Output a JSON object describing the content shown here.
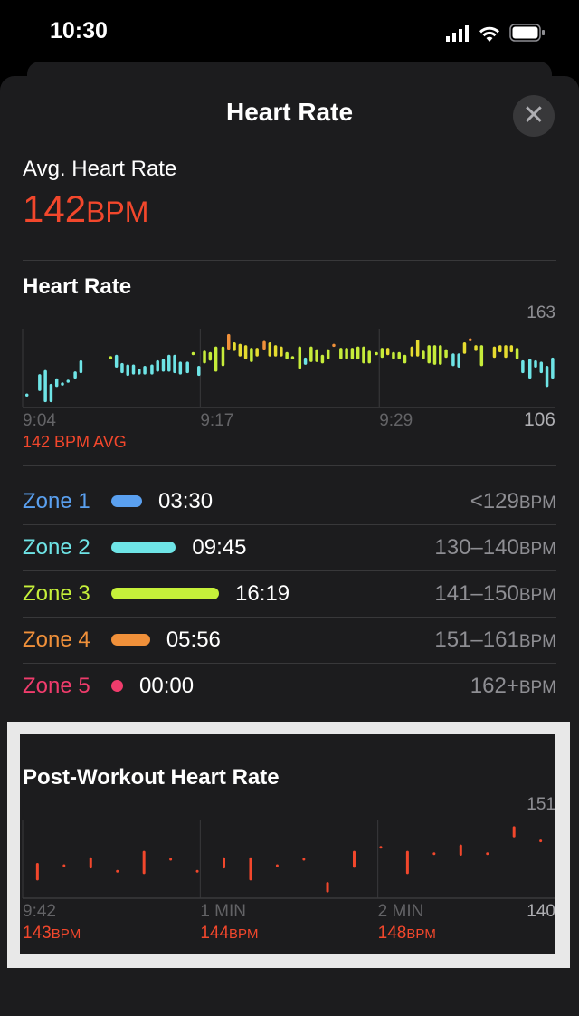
{
  "status": {
    "time": "10:30"
  },
  "header": {
    "title": "Heart Rate",
    "close_icon": "close-icon"
  },
  "avg": {
    "label": "Avg. Heart Rate",
    "value": "142",
    "unit": "BPM"
  },
  "colors": {
    "accent": "#f2472c",
    "zone1": "#5aa0f0",
    "zone2": "#6ee4e6",
    "zone3": "#c6f03a",
    "zone4": "#f0903a",
    "zone5": "#f03c6c"
  },
  "chart_data": [
    {
      "type": "bar",
      "title": "Heart Rate",
      "ylim": [
        106,
        163
      ],
      "y_max_label": "163",
      "y_min_label": "106",
      "xlim": [
        0,
        37.5
      ],
      "x_ticks": [
        {
          "label": "9:04",
          "min": 0
        },
        {
          "label": "9:17",
          "min": 12.5
        },
        {
          "label": "9:29",
          "min": 25.1
        }
      ],
      "summary": "142 BPM AVG",
      "bars": [
        [
          0.3,
          115,
          115
        ],
        [
          1.2,
          119,
          129
        ],
        [
          1.6,
          111,
          132
        ],
        [
          2.0,
          111,
          122
        ],
        [
          2.4,
          122,
          126
        ],
        [
          2.8,
          123,
          123
        ],
        [
          3.2,
          125,
          125
        ],
        [
          3.7,
          128,
          131
        ],
        [
          4.1,
          132,
          139
        ],
        [
          6.2,
          142,
          142
        ],
        [
          6.6,
          136,
          143
        ],
        [
          7.0,
          132,
          137
        ],
        [
          7.4,
          130,
          136
        ],
        [
          7.8,
          131,
          136
        ],
        [
          8.2,
          131,
          133
        ],
        [
          8.6,
          131,
          135
        ],
        [
          9.1,
          131,
          136
        ],
        [
          9.5,
          133,
          139
        ],
        [
          9.9,
          133,
          140
        ],
        [
          10.3,
          133,
          143
        ],
        [
          10.7,
          132,
          143
        ],
        [
          11.1,
          131,
          138
        ],
        [
          11.6,
          132,
          138
        ],
        [
          12.0,
          145,
          145
        ],
        [
          12.4,
          130,
          135
        ],
        [
          12.8,
          139,
          146
        ],
        [
          13.2,
          141,
          145
        ],
        [
          13.6,
          133,
          149
        ],
        [
          14.1,
          137,
          149
        ],
        [
          14.5,
          149,
          158
        ],
        [
          14.9,
          148,
          152
        ],
        [
          15.3,
          144,
          151
        ],
        [
          15.7,
          142,
          150
        ],
        [
          16.1,
          140,
          148
        ],
        [
          16.5,
          144,
          148
        ],
        [
          17.0,
          149,
          153
        ],
        [
          17.4,
          144,
          152
        ],
        [
          17.8,
          144,
          150
        ],
        [
          18.2,
          144,
          149
        ],
        [
          18.6,
          142,
          145
        ],
        [
          19.0,
          142,
          142
        ],
        [
          19.5,
          135,
          149
        ],
        [
          19.9,
          138,
          141
        ],
        [
          20.3,
          140,
          149
        ],
        [
          20.7,
          140,
          147
        ],
        [
          21.1,
          139,
          143
        ],
        [
          21.5,
          142,
          147
        ],
        [
          21.9,
          151,
          151
        ],
        [
          22.4,
          142,
          148
        ],
        [
          22.8,
          142,
          148
        ],
        [
          23.2,
          142,
          148
        ],
        [
          23.6,
          142,
          149
        ],
        [
          24.0,
          139,
          149
        ],
        [
          24.4,
          139,
          146
        ],
        [
          24.9,
          145,
          145
        ],
        [
          25.3,
          143,
          148
        ],
        [
          25.7,
          145,
          148
        ],
        [
          26.1,
          142,
          145
        ],
        [
          26.5,
          142,
          145
        ],
        [
          26.9,
          139,
          143
        ],
        [
          27.4,
          144,
          149
        ],
        [
          27.8,
          144,
          154
        ],
        [
          28.2,
          142,
          146
        ],
        [
          28.6,
          139,
          150
        ],
        [
          29.0,
          138,
          150
        ],
        [
          29.4,
          138,
          150
        ],
        [
          29.8,
          143,
          147
        ],
        [
          30.3,
          137,
          144
        ],
        [
          30.7,
          136,
          144
        ],
        [
          31.1,
          146,
          152
        ],
        [
          31.5,
          155,
          155
        ],
        [
          31.9,
          148,
          150
        ],
        [
          32.3,
          137,
          150
        ],
        [
          33.2,
          143,
          149
        ],
        [
          33.6,
          147,
          150
        ],
        [
          34.0,
          143,
          150
        ],
        [
          34.4,
          147,
          150
        ],
        [
          34.8,
          142,
          148
        ],
        [
          35.2,
          132,
          139
        ],
        [
          35.7,
          128,
          140
        ],
        [
          36.1,
          136,
          139
        ],
        [
          36.5,
          132,
          138
        ],
        [
          36.9,
          122,
          135
        ],
        [
          37.3,
          128,
          141
        ]
      ]
    },
    {
      "type": "bar",
      "title": "Post-Workout Heart Rate",
      "ylim": [
        140,
        151
      ],
      "y_max_label": "151",
      "y_min_label": "140",
      "xlim": [
        0,
        180
      ],
      "x_ticks": [
        {
          "label": "9:42",
          "sec": 0,
          "value": "143",
          "unit": "BPM"
        },
        {
          "label": "1 MIN",
          "sec": 60,
          "value": "144",
          "unit": "BPM"
        },
        {
          "label": "2 MIN",
          "sec": 120,
          "value": "148",
          "unit": "BPM"
        }
      ],
      "bars": [
        [
          5,
          142.7,
          144.8
        ],
        [
          14,
          144.6,
          144.6
        ],
        [
          23,
          144.4,
          145.6
        ],
        [
          32,
          143.8,
          143.8
        ],
        [
          41,
          143.6,
          146.5
        ],
        [
          50,
          145.5,
          145.5
        ],
        [
          59,
          143.8,
          143.8
        ],
        [
          68,
          144.4,
          145.6
        ],
        [
          77,
          142.7,
          145.6
        ],
        [
          86,
          144.6,
          144.6
        ],
        [
          95,
          145.5,
          145.5
        ],
        [
          103,
          141.0,
          142.1
        ],
        [
          112,
          144.5,
          146.5
        ],
        [
          121,
          147.2,
          147.2
        ],
        [
          130,
          143.6,
          146.5
        ],
        [
          139,
          146.3,
          146.3
        ],
        [
          148,
          146.2,
          147.4
        ],
        [
          157,
          146.3,
          146.3
        ],
        [
          166,
          148.8,
          150.0
        ],
        [
          175,
          148.1,
          148.1
        ]
      ]
    }
  ],
  "zones": [
    {
      "name": "Zone 1",
      "duration": "03:30",
      "range": "<129",
      "unit": "BPM",
      "fraction": 0.21
    },
    {
      "name": "Zone 2",
      "duration": "09:45",
      "range": "130–140",
      "unit": "BPM",
      "fraction": 0.6
    },
    {
      "name": "Zone 3",
      "duration": "16:19",
      "range": "141–150",
      "unit": "BPM",
      "fraction": 1.0
    },
    {
      "name": "Zone 4",
      "duration": "05:56",
      "range": "151–161",
      "unit": "BPM",
      "fraction": 0.36
    },
    {
      "name": "Zone 5",
      "duration": "00:00",
      "range": "162+",
      "unit": "BPM",
      "fraction": 0
    }
  ]
}
